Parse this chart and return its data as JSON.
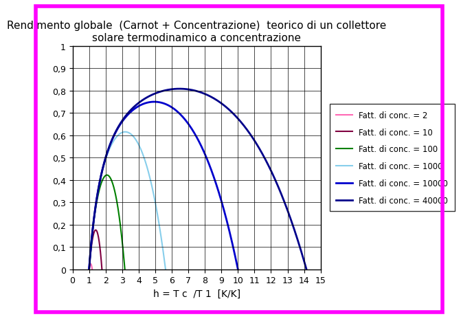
{
  "title_line1": "Rendimento globale  (Carnot + Concentrazione)  teorico di un collettore",
  "title_line2": "solare termodinamico a concentrazione",
  "xlabel": "h = T c  /T 1  [K/K]",
  "ylabel_ticks": [
    "0",
    "0,1",
    "0,2",
    "0,3",
    "0,4",
    "0,5",
    "0,6",
    "0,7",
    "0,8",
    "0,9",
    "1"
  ],
  "xticks": [
    0,
    1,
    2,
    3,
    4,
    5,
    6,
    7,
    8,
    9,
    10,
    11,
    12,
    13,
    14,
    15
  ],
  "concentration_factors": [
    2,
    10,
    100,
    1000,
    10000,
    40000
  ],
  "colors": [
    "#ff69b4",
    "#800040",
    "#008000",
    "#87ceeb",
    "#0000cd",
    "#00008b"
  ],
  "linewidths": [
    1.5,
    1.5,
    1.5,
    1.5,
    2.0,
    2.0
  ],
  "legend_labels": [
    "Fatt. di conc. = 2",
    "Fatt. di conc. = 10",
    "Fatt. di conc. = 100",
    "Fatt. di conc. = 1000",
    "Fatt. di conc. = 10000",
    "Fatt. di conc. = 40000"
  ],
  "xlim": [
    0,
    15
  ],
  "ylim": [
    0,
    1
  ],
  "background_color": "#ffffff",
  "border_color": "#ff00ff",
  "grid_color": "#000000",
  "title_fontsize": 11,
  "axis_fontsize": 9,
  "legend_fontsize": 8.5
}
